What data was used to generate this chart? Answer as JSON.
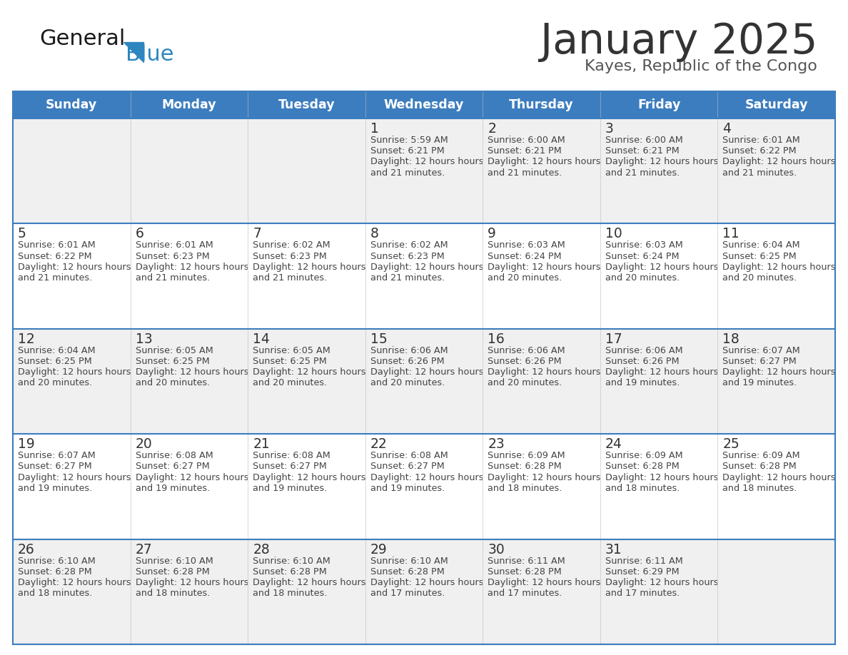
{
  "title": "January 2025",
  "subtitle": "Kayes, Republic of the Congo",
  "days_of_week": [
    "Sunday",
    "Monday",
    "Tuesday",
    "Wednesday",
    "Thursday",
    "Friday",
    "Saturday"
  ],
  "header_bg": "#3c7dbf",
  "header_text_color": "#ffffff",
  "cell_bg_odd": "#f0f0f0",
  "cell_bg_even": "#ffffff",
  "cell_text_color": "#333333",
  "separator_color": "#3c7dbf",
  "title_color": "#333333",
  "subtitle_color": "#555555",
  "logo_general_color": "#1a1a1a",
  "logo_blue_color": "#2e86c1",
  "calendar": [
    [
      null,
      null,
      null,
      {
        "day": 1,
        "sunrise": "5:59 AM",
        "sunset": "6:21 PM",
        "daylight": "12 hours and 21 minutes"
      },
      {
        "day": 2,
        "sunrise": "6:00 AM",
        "sunset": "6:21 PM",
        "daylight": "12 hours and 21 minutes"
      },
      {
        "day": 3,
        "sunrise": "6:00 AM",
        "sunset": "6:21 PM",
        "daylight": "12 hours and 21 minutes"
      },
      {
        "day": 4,
        "sunrise": "6:01 AM",
        "sunset": "6:22 PM",
        "daylight": "12 hours and 21 minutes"
      }
    ],
    [
      {
        "day": 5,
        "sunrise": "6:01 AM",
        "sunset": "6:22 PM",
        "daylight": "12 hours and 21 minutes"
      },
      {
        "day": 6,
        "sunrise": "6:01 AM",
        "sunset": "6:23 PM",
        "daylight": "12 hours and 21 minutes"
      },
      {
        "day": 7,
        "sunrise": "6:02 AM",
        "sunset": "6:23 PM",
        "daylight": "12 hours and 21 minutes"
      },
      {
        "day": 8,
        "sunrise": "6:02 AM",
        "sunset": "6:23 PM",
        "daylight": "12 hours and 21 minutes"
      },
      {
        "day": 9,
        "sunrise": "6:03 AM",
        "sunset": "6:24 PM",
        "daylight": "12 hours and 20 minutes"
      },
      {
        "day": 10,
        "sunrise": "6:03 AM",
        "sunset": "6:24 PM",
        "daylight": "12 hours and 20 minutes"
      },
      {
        "day": 11,
        "sunrise": "6:04 AM",
        "sunset": "6:25 PM",
        "daylight": "12 hours and 20 minutes"
      }
    ],
    [
      {
        "day": 12,
        "sunrise": "6:04 AM",
        "sunset": "6:25 PM",
        "daylight": "12 hours and 20 minutes"
      },
      {
        "day": 13,
        "sunrise": "6:05 AM",
        "sunset": "6:25 PM",
        "daylight": "12 hours and 20 minutes"
      },
      {
        "day": 14,
        "sunrise": "6:05 AM",
        "sunset": "6:25 PM",
        "daylight": "12 hours and 20 minutes"
      },
      {
        "day": 15,
        "sunrise": "6:06 AM",
        "sunset": "6:26 PM",
        "daylight": "12 hours and 20 minutes"
      },
      {
        "day": 16,
        "sunrise": "6:06 AM",
        "sunset": "6:26 PM",
        "daylight": "12 hours and 20 minutes"
      },
      {
        "day": 17,
        "sunrise": "6:06 AM",
        "sunset": "6:26 PM",
        "daylight": "12 hours and 19 minutes"
      },
      {
        "day": 18,
        "sunrise": "6:07 AM",
        "sunset": "6:27 PM",
        "daylight": "12 hours and 19 minutes"
      }
    ],
    [
      {
        "day": 19,
        "sunrise": "6:07 AM",
        "sunset": "6:27 PM",
        "daylight": "12 hours and 19 minutes"
      },
      {
        "day": 20,
        "sunrise": "6:08 AM",
        "sunset": "6:27 PM",
        "daylight": "12 hours and 19 minutes"
      },
      {
        "day": 21,
        "sunrise": "6:08 AM",
        "sunset": "6:27 PM",
        "daylight": "12 hours and 19 minutes"
      },
      {
        "day": 22,
        "sunrise": "6:08 AM",
        "sunset": "6:27 PM",
        "daylight": "12 hours and 19 minutes"
      },
      {
        "day": 23,
        "sunrise": "6:09 AM",
        "sunset": "6:28 PM",
        "daylight": "12 hours and 18 minutes"
      },
      {
        "day": 24,
        "sunrise": "6:09 AM",
        "sunset": "6:28 PM",
        "daylight": "12 hours and 18 minutes"
      },
      {
        "day": 25,
        "sunrise": "6:09 AM",
        "sunset": "6:28 PM",
        "daylight": "12 hours and 18 minutes"
      }
    ],
    [
      {
        "day": 26,
        "sunrise": "6:10 AM",
        "sunset": "6:28 PM",
        "daylight": "12 hours and 18 minutes"
      },
      {
        "day": 27,
        "sunrise": "6:10 AM",
        "sunset": "6:28 PM",
        "daylight": "12 hours and 18 minutes"
      },
      {
        "day": 28,
        "sunrise": "6:10 AM",
        "sunset": "6:28 PM",
        "daylight": "12 hours and 18 minutes"
      },
      {
        "day": 29,
        "sunrise": "6:10 AM",
        "sunset": "6:28 PM",
        "daylight": "12 hours and 17 minutes"
      },
      {
        "day": 30,
        "sunrise": "6:11 AM",
        "sunset": "6:28 PM",
        "daylight": "12 hours and 17 minutes"
      },
      {
        "day": 31,
        "sunrise": "6:11 AM",
        "sunset": "6:29 PM",
        "daylight": "12 hours and 17 minutes"
      },
      null
    ]
  ]
}
